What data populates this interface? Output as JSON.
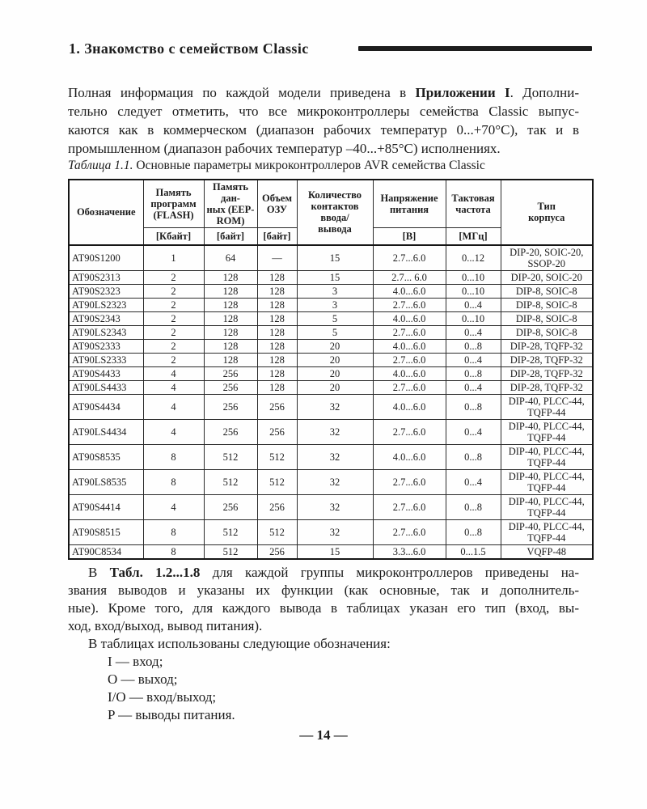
{
  "page": {
    "number": "— 14 —"
  },
  "header": {
    "title": "1. Знакомство с семейством Classic"
  },
  "intro": {
    "lines": [
      {
        "pre": "Полная информация по каждой модели приведена в ",
        "bold": "Приложении I",
        "post": ". Дополни-"
      },
      {
        "pre": "тельно следует отметить, что все микроконтроллеры семейства Classic выпус-"
      },
      {
        "pre": "каются как в коммерческом (диапазон рабочих температур 0...+70°С), так и в"
      },
      {
        "pre": "промышленном (диапазон рабочих температур –40...+85°С) исполнениях.",
        "justify": false
      }
    ]
  },
  "table": {
    "caption_label": "Таблица 1.1.",
    "caption_text": " Основные параметры микроконтроллеров AVR семейства Classic",
    "columns": [
      {
        "label": "Обозначение"
      },
      {
        "label": "Память\nпрограмм\n(FLASH)",
        "unit": "[Кбайт]"
      },
      {
        "label": "Память дан-\nных (EEP-\nROM)",
        "unit": "[байт]"
      },
      {
        "label": "Объем\nОЗУ",
        "unit": "[байт]"
      },
      {
        "label": "Количество\nконтактов\nввода/\nвывода"
      },
      {
        "label": "Напряжение\nпитания",
        "unit": "[В]"
      },
      {
        "label": "Тактовая\nчастота",
        "unit": "[МГц]"
      },
      {
        "label": "Тип\nкорпуса"
      }
    ],
    "col_names": [
      "designation",
      "flash-kbytes",
      "eeprom-bytes",
      "ram-bytes",
      "io-pins",
      "supply-voltage",
      "clock-mhz",
      "package-type"
    ],
    "rows": [
      [
        "AT90S1200",
        "1",
        "64",
        "—",
        "15",
        "2.7...6.0",
        "0...12",
        "DIP-20, SOIC-20,\nSSOP-20"
      ],
      [
        "AT90S2313",
        "2",
        "128",
        "128",
        "15",
        "2.7... 6.0",
        "0...10",
        "DIP-20, SOIC-20"
      ],
      [
        "AT90S2323",
        "2",
        "128",
        "128",
        "3",
        "4.0...6.0",
        "0...10",
        "DIP-8, SOIC-8"
      ],
      [
        "AT90LS2323",
        "2",
        "128",
        "128",
        "3",
        "2.7...6.0",
        "0...4",
        "DIP-8, SOIC-8"
      ],
      [
        "AT90S2343",
        "2",
        "128",
        "128",
        "5",
        "4.0...6.0",
        "0...10",
        "DIP-8, SOIC-8"
      ],
      [
        "AT90LS2343",
        "2",
        "128",
        "128",
        "5",
        "2.7...6.0",
        "0...4",
        "DIP-8, SOIC-8"
      ],
      [
        "AT90S2333",
        "2",
        "128",
        "128",
        "20",
        "4.0...6.0",
        "0...8",
        "DIP-28, TQFP-32"
      ],
      [
        "AT90LS2333",
        "2",
        "128",
        "128",
        "20",
        "2.7...6.0",
        "0...4",
        "DIP-28, TQFP-32"
      ],
      [
        "AT90S4433",
        "4",
        "256",
        "128",
        "20",
        "4.0...6.0",
        "0...8",
        "DIP-28, TQFP-32"
      ],
      [
        "AT90LS4433",
        "4",
        "256",
        "128",
        "20",
        "2.7...6.0",
        "0...4",
        "DIP-28, TQFP-32"
      ],
      [
        "AT90S4434",
        "4",
        "256",
        "256",
        "32",
        "4.0...6.0",
        "0...8",
        "DIP-40, PLCC-44,\nTQFP-44"
      ],
      [
        "AT90LS4434",
        "4",
        "256",
        "256",
        "32",
        "2.7...6.0",
        "0...4",
        "DIP-40, PLCC-44,\nTQFP-44"
      ],
      [
        "AT90S8535",
        "8",
        "512",
        "512",
        "32",
        "4.0...6.0",
        "0...8",
        "DIP-40, PLCC-44,\nTQFP-44"
      ],
      [
        "AT90LS8535",
        "8",
        "512",
        "512",
        "32",
        "2.7...6.0",
        "0...4",
        "DIP-40, PLCC-44,\nTQFP-44"
      ],
      [
        "AT90S4414",
        "4",
        "256",
        "256",
        "32",
        "2.7...6.0",
        "0...8",
        "DIP-40, PLCC-44,\nTQFP-44"
      ],
      [
        "AT90S8515",
        "8",
        "512",
        "512",
        "32",
        "2.7...6.0",
        "0...8",
        "DIP-40, PLCC-44,\nTQFP-44"
      ],
      [
        "AT90C8534",
        "8",
        "512",
        "256",
        "15",
        "3.3...6.0",
        "0...1.5",
        "VQFP-48"
      ]
    ]
  },
  "body2": {
    "lines": [
      {
        "pre": "В ",
        "bold": "Табл. 1.2...1.8",
        "post": " для каждой группы микроконтроллеров приведены на-",
        "indent": true
      },
      {
        "pre": "звания выводов и указаны их функции (как основные, так и дополнитель-"
      },
      {
        "pre": "ные). Кроме того, для каждого вывода в таблицах указан его тип (вход, вы-"
      },
      {
        "pre": "ход, вход/выход, вывод питания).",
        "justify": false
      },
      {
        "pre": "В таблицах использованы следующие обозначения:",
        "justify": false,
        "indent": true
      }
    ]
  },
  "legend": {
    "items": [
      "I — вход;",
      "O — выход;",
      "I/O — вход/выход;",
      "P — выводы питания."
    ]
  }
}
